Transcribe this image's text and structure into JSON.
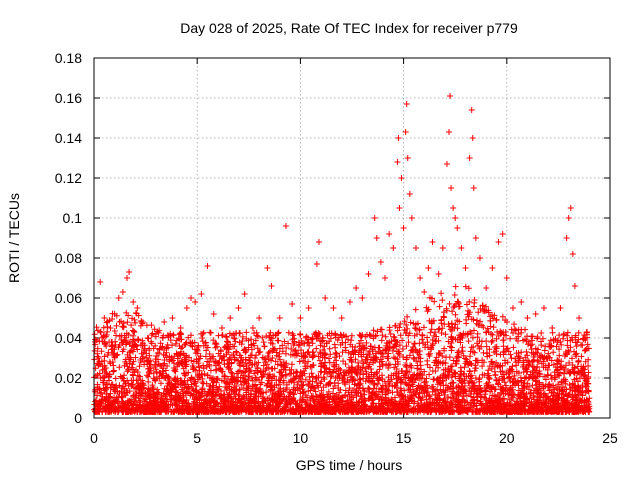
{
  "chart_data": {
    "type": "scatter",
    "title": "Day 028 of 2025, Rate Of TEC Index for receiver p779",
    "xlabel": "GPS time / hours",
    "ylabel": "ROTI / TECUs",
    "xlim": [
      0,
      25
    ],
    "ylim": [
      0,
      0.18
    ],
    "x_ticks": [
      0,
      5,
      10,
      15,
      20,
      25
    ],
    "x_tick_labels": [
      "0",
      "5",
      "10",
      "15",
      "20",
      "25"
    ],
    "y_ticks": [
      0,
      0.02,
      0.04,
      0.06,
      0.08,
      0.1,
      0.12,
      0.14,
      0.16,
      0.18
    ],
    "y_tick_labels": [
      "0",
      "0.02",
      "0.04",
      "0.06",
      "0.08",
      "0.1",
      "0.12",
      "0.14",
      "0.16",
      "0.18"
    ],
    "grid": true,
    "marker": "+",
    "marker_color": "#ff0000",
    "background_density_note": "Dense band of points between 0.003 and 0.04 TECU across 0-24 h",
    "series": [
      {
        "name": "ROTI",
        "color": "#ff0000",
        "points": [
          [
            0.3,
            0.068
          ],
          [
            0.5,
            0.05
          ],
          [
            0.8,
            0.045
          ],
          [
            1.0,
            0.052
          ],
          [
            1.2,
            0.06
          ],
          [
            1.4,
            0.063
          ],
          [
            1.6,
            0.07
          ],
          [
            1.7,
            0.073
          ],
          [
            1.9,
            0.058
          ],
          [
            2.1,
            0.055
          ],
          [
            2.3,
            0.048
          ],
          [
            2.6,
            0.04
          ],
          [
            3.0,
            0.042
          ],
          [
            3.4,
            0.048
          ],
          [
            3.8,
            0.05
          ],
          [
            4.2,
            0.045
          ],
          [
            4.5,
            0.055
          ],
          [
            4.7,
            0.06
          ],
          [
            4.9,
            0.058
          ],
          [
            5.2,
            0.062
          ],
          [
            5.5,
            0.076
          ],
          [
            5.8,
            0.052
          ],
          [
            6.2,
            0.045
          ],
          [
            6.6,
            0.05
          ],
          [
            7.0,
            0.055
          ],
          [
            7.3,
            0.062
          ],
          [
            7.7,
            0.045
          ],
          [
            8.0,
            0.05
          ],
          [
            8.4,
            0.075
          ],
          [
            8.6,
            0.066
          ],
          [
            9.0,
            0.05
          ],
          [
            9.3,
            0.096
          ],
          [
            9.6,
            0.057
          ],
          [
            10.0,
            0.05
          ],
          [
            10.4,
            0.055
          ],
          [
            10.8,
            0.077
          ],
          [
            10.9,
            0.088
          ],
          [
            11.2,
            0.06
          ],
          [
            11.6,
            0.055
          ],
          [
            12.0,
            0.05
          ],
          [
            12.4,
            0.058
          ],
          [
            12.7,
            0.065
          ],
          [
            13.0,
            0.06
          ],
          [
            13.3,
            0.072
          ],
          [
            13.6,
            0.1
          ],
          [
            13.7,
            0.09
          ],
          [
            13.9,
            0.078
          ],
          [
            14.1,
            0.07
          ],
          [
            14.3,
            0.092
          ],
          [
            14.5,
            0.085
          ],
          [
            14.7,
            0.128
          ],
          [
            14.75,
            0.14
          ],
          [
            14.8,
            0.105
          ],
          [
            14.9,
            0.12
          ],
          [
            15.0,
            0.095
          ],
          [
            15.1,
            0.143
          ],
          [
            15.15,
            0.157
          ],
          [
            15.2,
            0.13
          ],
          [
            15.3,
            0.112
          ],
          [
            15.4,
            0.1
          ],
          [
            15.6,
            0.085
          ],
          [
            15.8,
            0.07
          ],
          [
            16.0,
            0.063
          ],
          [
            16.2,
            0.075
          ],
          [
            16.4,
            0.088
          ],
          [
            16.7,
            0.072
          ],
          [
            16.9,
            0.085
          ],
          [
            17.1,
            0.127
          ],
          [
            17.2,
            0.143
          ],
          [
            17.25,
            0.161
          ],
          [
            17.3,
            0.115
          ],
          [
            17.4,
            0.105
          ],
          [
            17.5,
            0.1
          ],
          [
            17.6,
            0.095
          ],
          [
            17.8,
            0.085
          ],
          [
            18.0,
            0.075
          ],
          [
            18.2,
            0.13
          ],
          [
            18.3,
            0.154
          ],
          [
            18.35,
            0.14
          ],
          [
            18.4,
            0.115
          ],
          [
            18.5,
            0.09
          ],
          [
            18.7,
            0.08
          ],
          [
            19.0,
            0.065
          ],
          [
            19.3,
            0.075
          ],
          [
            19.6,
            0.088
          ],
          [
            19.8,
            0.092
          ],
          [
            20.0,
            0.07
          ],
          [
            20.3,
            0.055
          ],
          [
            20.7,
            0.058
          ],
          [
            21.0,
            0.05
          ],
          [
            21.4,
            0.052
          ],
          [
            21.8,
            0.055
          ],
          [
            22.2,
            0.045
          ],
          [
            22.6,
            0.055
          ],
          [
            22.9,
            0.09
          ],
          [
            23.0,
            0.1
          ],
          [
            23.1,
            0.105
          ],
          [
            23.2,
            0.082
          ],
          [
            23.3,
            0.066
          ],
          [
            23.5,
            0.05
          ],
          [
            23.8,
            0.04
          ]
        ]
      }
    ]
  }
}
